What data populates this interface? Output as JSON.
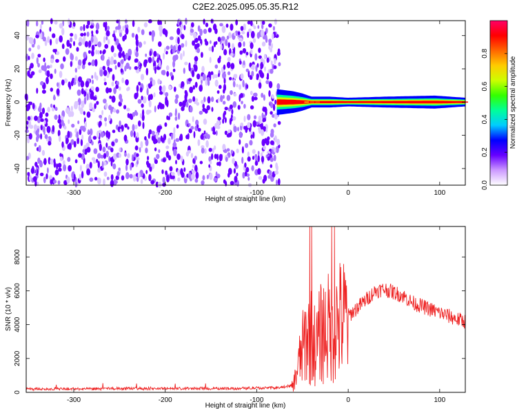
{
  "title": "C2E2.2025.095.05.35.R12",
  "chart_data": [
    {
      "type": "heatmap",
      "xlabel": "Height of straight line (km)",
      "ylabel": "Frequency (Hz)",
      "xlim": [
        -352,
        128
      ],
      "ylim": [
        -50,
        49
      ],
      "xticks": [
        -300,
        -200,
        -100,
        0,
        100
      ],
      "yticks": [
        -40,
        -20,
        0,
        20,
        40
      ],
      "colorbar": {
        "label": "Normalized spectral amplitude",
        "range": [
          0.0,
          1.0
        ],
        "ticks": [
          0.0,
          0.2,
          0.4,
          0.6,
          0.8
        ],
        "colors": [
          "#ffffff",
          "#cc99ff",
          "#6600ff",
          "#0000ff",
          "#00ccff",
          "#00ff99",
          "#33ff00",
          "#ccff00",
          "#ffcc00",
          "#ff6600",
          "#ff0000",
          "#ff0066"
        ]
      },
      "noise_region_x": [
        -352,
        -75
      ],
      "signal_band": {
        "x": [
          -78,
          -60,
          -50,
          -40,
          -20,
          0,
          40,
          95,
          128
        ],
        "center_hz": [
          0,
          0,
          0,
          0,
          0,
          0,
          0,
          0,
          0
        ],
        "halfwidth_hz": [
          6,
          5,
          4,
          2.5,
          2.5,
          2,
          2.5,
          3,
          2
        ],
        "peak_amplitude": [
          0.4,
          0.55,
          0.75,
          0.85,
          0.9,
          0.95,
          0.95,
          0.9,
          0.9
        ]
      }
    },
    {
      "type": "line",
      "xlabel": "Height of straight line (km)",
      "ylabel": "SNR (10 * v/v)",
      "xlim": [
        -352,
        128
      ],
      "ylim": [
        0,
        9800
      ],
      "xticks": [
        -300,
        -200,
        -100,
        0,
        100
      ],
      "yticks": [
        0,
        2000,
        4000,
        6000,
        8000
      ],
      "series": [
        {
          "color": "#ee2222",
          "x": [
            -352,
            -300,
            -250,
            -200,
            -150,
            -100,
            -75,
            -60,
            -55,
            -50,
            -45,
            -40,
            -35,
            -30,
            -25,
            -20,
            -15,
            -10,
            -5,
            0,
            10,
            20,
            30,
            40,
            50,
            60,
            70,
            80,
            90,
            100,
            110,
            120,
            128
          ],
          "y": [
            200,
            200,
            220,
            230,
            220,
            250,
            270,
            400,
            1500,
            2500,
            3400,
            3300,
            2600,
            3500,
            3700,
            3800,
            4000,
            4200,
            4300,
            4500,
            5000,
            5500,
            6000,
            6100,
            5900,
            5700,
            5300,
            5100,
            4900,
            4700,
            4500,
            4300,
            4200
          ]
        }
      ]
    }
  ]
}
